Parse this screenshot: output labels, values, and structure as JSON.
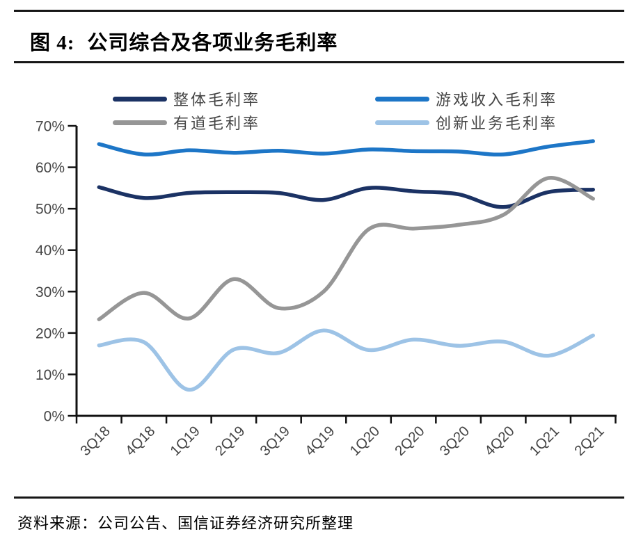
{
  "header": {
    "figure_label": "图 4:",
    "title": "公司综合及各项业务毛利率"
  },
  "footer": {
    "source": "资料来源：公司公告、国信证券经济研究所整理"
  },
  "chart_data": {
    "type": "line",
    "title": "公司综合及各项业务毛利率",
    "categories": [
      "3Q18",
      "4Q18",
      "1Q19",
      "2Q19",
      "3Q19",
      "4Q19",
      "1Q20",
      "2Q20",
      "3Q20",
      "4Q20",
      "1Q21",
      "2Q21"
    ],
    "series": [
      {
        "name": "整体毛利率",
        "color": "#1b3264",
        "values": [
          55.2,
          52.6,
          53.8,
          54.0,
          53.8,
          52.1,
          55.0,
          54.2,
          53.5,
          50.4,
          54.0,
          54.6
        ]
      },
      {
        "name": "游戏收入毛利率",
        "color": "#1d76c7",
        "values": [
          65.6,
          63.1,
          64.1,
          63.5,
          64.0,
          63.3,
          64.3,
          63.9,
          63.8,
          63.1,
          65.0,
          66.3
        ]
      },
      {
        "name": "有道毛利率",
        "color": "#969696",
        "values": [
          23.3,
          29.7,
          23.5,
          33.0,
          26.0,
          30.0,
          45.0,
          45.2,
          46.1,
          48.5,
          57.4,
          52.4
        ]
      },
      {
        "name": "创新业务毛利率",
        "color": "#9dc3e6",
        "values": [
          17.0,
          17.8,
          6.3,
          16.0,
          15.2,
          20.6,
          15.9,
          18.4,
          16.9,
          17.9,
          14.5,
          19.4
        ]
      }
    ],
    "xlabel": "",
    "ylabel": "",
    "ylim": [
      0,
      70
    ],
    "ytick_step": 10,
    "ytick_format": "percent",
    "grid": false,
    "smooth": true,
    "legend_position": "top",
    "axis_color": "#111111",
    "tick_label_color": "#454545"
  }
}
